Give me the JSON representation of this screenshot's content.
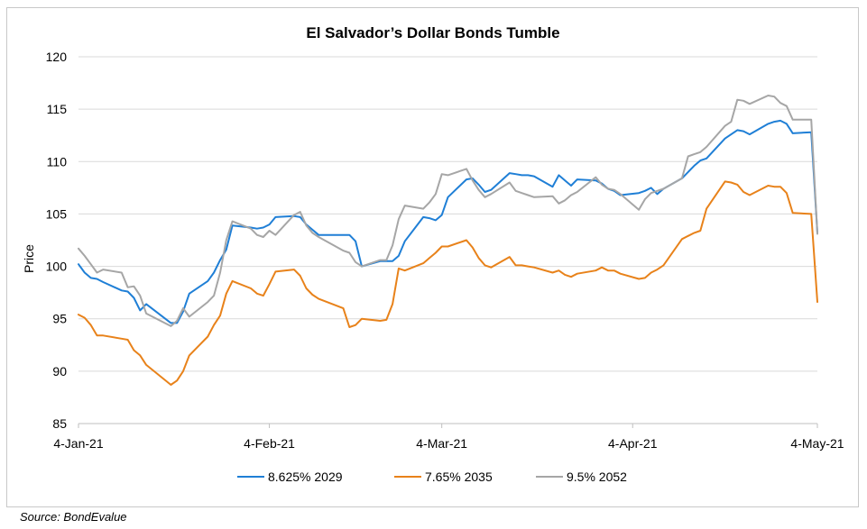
{
  "chart_data": {
    "type": "line",
    "title": "El Salvador’s Dollar Bonds Tumble",
    "xlabel": "",
    "ylabel": "Price",
    "ylim": [
      85,
      120
    ],
    "yticks": [
      85,
      90,
      95,
      100,
      105,
      110,
      115,
      120
    ],
    "xlim": [
      "2021-01-04",
      "2021-05-04"
    ],
    "xtick_labels": [
      {
        "date": "2021-01-04",
        "label": "4-Jan-21"
      },
      {
        "date": "2021-02-04",
        "label": "4-Feb-21"
      },
      {
        "date": "2021-03-04",
        "label": "4-Mar-21"
      },
      {
        "date": "2021-04-04",
        "label": "4-Apr-21"
      },
      {
        "date": "2021-05-04",
        "label": "4-May-21"
      }
    ],
    "grid": "horizontal",
    "legend_position": "bottom",
    "series": [
      {
        "name": "8.625% 2029",
        "color": "#1f7fd6",
        "points": [
          [
            "2021-01-04",
            100.2
          ],
          [
            "2021-01-05",
            99.4
          ],
          [
            "2021-01-06",
            98.9
          ],
          [
            "2021-01-07",
            98.8
          ],
          [
            "2021-01-08",
            98.5
          ],
          [
            "2021-01-11",
            97.7
          ],
          [
            "2021-01-12",
            97.6
          ],
          [
            "2021-01-13",
            97.0
          ],
          [
            "2021-01-14",
            95.8
          ],
          [
            "2021-01-15",
            96.4
          ],
          [
            "2021-01-19",
            94.6
          ],
          [
            "2021-01-20",
            94.6
          ],
          [
            "2021-01-21",
            95.7
          ],
          [
            "2021-01-22",
            97.4
          ],
          [
            "2021-01-25",
            98.6
          ],
          [
            "2021-01-26",
            99.4
          ],
          [
            "2021-01-27",
            100.6
          ],
          [
            "2021-01-28",
            101.6
          ],
          [
            "2021-01-29",
            103.9
          ],
          [
            "2021-02-01",
            103.7
          ],
          [
            "2021-02-02",
            103.6
          ],
          [
            "2021-02-03",
            103.7
          ],
          [
            "2021-02-04",
            104.0
          ],
          [
            "2021-02-05",
            104.7
          ],
          [
            "2021-02-08",
            104.8
          ],
          [
            "2021-02-09",
            104.7
          ],
          [
            "2021-02-10",
            104.0
          ],
          [
            "2021-02-11",
            103.5
          ],
          [
            "2021-02-12",
            103.0
          ],
          [
            "2021-02-16",
            103.0
          ],
          [
            "2021-02-17",
            103.0
          ],
          [
            "2021-02-18",
            102.4
          ],
          [
            "2021-02-19",
            100.0
          ],
          [
            "2021-02-22",
            100.5
          ],
          [
            "2021-02-23",
            100.5
          ],
          [
            "2021-02-24",
            100.5
          ],
          [
            "2021-02-25",
            101.0
          ],
          [
            "2021-02-26",
            102.4
          ],
          [
            "2021-03-01",
            104.7
          ],
          [
            "2021-03-02",
            104.6
          ],
          [
            "2021-03-03",
            104.4
          ],
          [
            "2021-03-04",
            104.9
          ],
          [
            "2021-03-05",
            106.6
          ],
          [
            "2021-03-08",
            108.3
          ],
          [
            "2021-03-09",
            108.4
          ],
          [
            "2021-03-10",
            107.8
          ],
          [
            "2021-03-11",
            107.1
          ],
          [
            "2021-03-12",
            107.3
          ],
          [
            "2021-03-15",
            108.9
          ],
          [
            "2021-03-16",
            108.8
          ],
          [
            "2021-03-17",
            108.7
          ],
          [
            "2021-03-18",
            108.7
          ],
          [
            "2021-03-19",
            108.6
          ],
          [
            "2021-03-22",
            107.6
          ],
          [
            "2021-03-23",
            108.7
          ],
          [
            "2021-03-24",
            108.2
          ],
          [
            "2021-03-25",
            107.7
          ],
          [
            "2021-03-26",
            108.3
          ],
          [
            "2021-03-29",
            108.2
          ],
          [
            "2021-03-30",
            107.9
          ],
          [
            "2021-03-31",
            107.4
          ],
          [
            "2021-04-01",
            107.2
          ],
          [
            "2021-04-02",
            106.8
          ],
          [
            "2021-04-05",
            107.0
          ],
          [
            "2021-04-06",
            107.2
          ],
          [
            "2021-04-07",
            107.5
          ],
          [
            "2021-04-08",
            106.9
          ],
          [
            "2021-04-09",
            107.4
          ],
          [
            "2021-04-12",
            108.4
          ],
          [
            "2021-04-13",
            109.0
          ],
          [
            "2021-04-14",
            109.6
          ],
          [
            "2021-04-15",
            110.1
          ],
          [
            "2021-04-16",
            110.3
          ],
          [
            "2021-04-19",
            112.2
          ],
          [
            "2021-04-20",
            112.6
          ],
          [
            "2021-04-21",
            113.0
          ],
          [
            "2021-04-22",
            112.9
          ],
          [
            "2021-04-23",
            112.6
          ],
          [
            "2021-04-26",
            113.6
          ],
          [
            "2021-04-27",
            113.8
          ],
          [
            "2021-04-28",
            113.9
          ],
          [
            "2021-04-29",
            113.6
          ],
          [
            "2021-04-30",
            112.7
          ],
          [
            "2021-05-03",
            112.8
          ],
          [
            "2021-05-04",
            103.2
          ]
        ]
      },
      {
        "name": "7.65% 2035",
        "color": "#e8821a",
        "points": [
          [
            "2021-01-04",
            95.4
          ],
          [
            "2021-01-05",
            95.1
          ],
          [
            "2021-01-06",
            94.4
          ],
          [
            "2021-01-07",
            93.4
          ],
          [
            "2021-01-08",
            93.4
          ],
          [
            "2021-01-11",
            93.1
          ],
          [
            "2021-01-12",
            93.0
          ],
          [
            "2021-01-13",
            92.0
          ],
          [
            "2021-01-14",
            91.5
          ],
          [
            "2021-01-15",
            90.6
          ],
          [
            "2021-01-19",
            88.7
          ],
          [
            "2021-01-20",
            89.1
          ],
          [
            "2021-01-21",
            90.0
          ],
          [
            "2021-01-22",
            91.5
          ],
          [
            "2021-01-25",
            93.3
          ],
          [
            "2021-01-26",
            94.4
          ],
          [
            "2021-01-27",
            95.3
          ],
          [
            "2021-01-28",
            97.4
          ],
          [
            "2021-01-29",
            98.6
          ],
          [
            "2021-02-01",
            97.9
          ],
          [
            "2021-02-02",
            97.4
          ],
          [
            "2021-02-03",
            97.2
          ],
          [
            "2021-02-04",
            98.3
          ],
          [
            "2021-02-05",
            99.5
          ],
          [
            "2021-02-08",
            99.7
          ],
          [
            "2021-02-09",
            99.1
          ],
          [
            "2021-02-10",
            97.9
          ],
          [
            "2021-02-11",
            97.3
          ],
          [
            "2021-02-12",
            96.9
          ],
          [
            "2021-02-16",
            96.0
          ],
          [
            "2021-02-17",
            94.2
          ],
          [
            "2021-02-18",
            94.4
          ],
          [
            "2021-02-19",
            95.0
          ],
          [
            "2021-02-22",
            94.8
          ],
          [
            "2021-02-23",
            94.9
          ],
          [
            "2021-02-24",
            96.4
          ],
          [
            "2021-02-25",
            99.8
          ],
          [
            "2021-02-26",
            99.6
          ],
          [
            "2021-03-01",
            100.3
          ],
          [
            "2021-03-02",
            100.8
          ],
          [
            "2021-03-03",
            101.3
          ],
          [
            "2021-03-04",
            101.9
          ],
          [
            "2021-03-05",
            101.9
          ],
          [
            "2021-03-08",
            102.5
          ],
          [
            "2021-03-09",
            101.8
          ],
          [
            "2021-03-10",
            100.8
          ],
          [
            "2021-03-11",
            100.1
          ],
          [
            "2021-03-12",
            99.9
          ],
          [
            "2021-03-15",
            100.9
          ],
          [
            "2021-03-16",
            100.1
          ],
          [
            "2021-03-17",
            100.1
          ],
          [
            "2021-03-18",
            100.0
          ],
          [
            "2021-03-19",
            99.9
          ],
          [
            "2021-03-22",
            99.4
          ],
          [
            "2021-03-23",
            99.6
          ],
          [
            "2021-03-24",
            99.2
          ],
          [
            "2021-03-25",
            99.0
          ],
          [
            "2021-03-26",
            99.3
          ],
          [
            "2021-03-29",
            99.6
          ],
          [
            "2021-03-30",
            99.9
          ],
          [
            "2021-03-31",
            99.6
          ],
          [
            "2021-04-01",
            99.6
          ],
          [
            "2021-04-02",
            99.3
          ],
          [
            "2021-04-05",
            98.8
          ],
          [
            "2021-04-06",
            98.9
          ],
          [
            "2021-04-07",
            99.4
          ],
          [
            "2021-04-08",
            99.7
          ],
          [
            "2021-04-09",
            100.1
          ],
          [
            "2021-04-12",
            102.6
          ],
          [
            "2021-04-13",
            102.9
          ],
          [
            "2021-04-14",
            103.2
          ],
          [
            "2021-04-15",
            103.4
          ],
          [
            "2021-04-16",
            105.5
          ],
          [
            "2021-04-19",
            108.1
          ],
          [
            "2021-04-20",
            108.0
          ],
          [
            "2021-04-21",
            107.8
          ],
          [
            "2021-04-22",
            107.1
          ],
          [
            "2021-04-23",
            106.8
          ],
          [
            "2021-04-26",
            107.7
          ],
          [
            "2021-04-27",
            107.6
          ],
          [
            "2021-04-28",
            107.6
          ],
          [
            "2021-04-29",
            107.0
          ],
          [
            "2021-04-30",
            105.1
          ],
          [
            "2021-05-03",
            105.0
          ],
          [
            "2021-05-04",
            96.6
          ]
        ]
      },
      {
        "name": "9.5% 2052",
        "color": "#a6a6a6",
        "points": [
          [
            "2021-01-04",
            101.7
          ],
          [
            "2021-01-05",
            101.0
          ],
          [
            "2021-01-06",
            100.2
          ],
          [
            "2021-01-07",
            99.4
          ],
          [
            "2021-01-08",
            99.7
          ],
          [
            "2021-01-11",
            99.4
          ],
          [
            "2021-01-12",
            98.0
          ],
          [
            "2021-01-13",
            98.1
          ],
          [
            "2021-01-14",
            97.2
          ],
          [
            "2021-01-15",
            95.5
          ],
          [
            "2021-01-19",
            94.3
          ],
          [
            "2021-01-20",
            94.8
          ],
          [
            "2021-01-21",
            96.0
          ],
          [
            "2021-01-22",
            95.2
          ],
          [
            "2021-01-25",
            96.6
          ],
          [
            "2021-01-26",
            97.2
          ],
          [
            "2021-01-27",
            99.4
          ],
          [
            "2021-01-28",
            102.5
          ],
          [
            "2021-01-29",
            104.3
          ],
          [
            "2021-02-01",
            103.6
          ],
          [
            "2021-02-02",
            103.0
          ],
          [
            "2021-02-03",
            102.8
          ],
          [
            "2021-02-04",
            103.4
          ],
          [
            "2021-02-05",
            103.0
          ],
          [
            "2021-02-08",
            104.9
          ],
          [
            "2021-02-09",
            105.2
          ],
          [
            "2021-02-10",
            103.9
          ],
          [
            "2021-02-11",
            103.2
          ],
          [
            "2021-02-12",
            102.8
          ],
          [
            "2021-02-16",
            101.5
          ],
          [
            "2021-02-17",
            101.3
          ],
          [
            "2021-02-18",
            100.4
          ],
          [
            "2021-02-19",
            100.0
          ],
          [
            "2021-02-22",
            100.6
          ],
          [
            "2021-02-23",
            100.6
          ],
          [
            "2021-02-24",
            102.0
          ],
          [
            "2021-02-25",
            104.5
          ],
          [
            "2021-02-26",
            105.8
          ],
          [
            "2021-03-01",
            105.5
          ],
          [
            "2021-03-02",
            106.1
          ],
          [
            "2021-03-03",
            106.9
          ],
          [
            "2021-03-04",
            108.8
          ],
          [
            "2021-03-05",
            108.7
          ],
          [
            "2021-03-08",
            109.3
          ],
          [
            "2021-03-09",
            108.2
          ],
          [
            "2021-03-10",
            107.3
          ],
          [
            "2021-03-11",
            106.6
          ],
          [
            "2021-03-12",
            106.9
          ],
          [
            "2021-03-15",
            108.0
          ],
          [
            "2021-03-16",
            107.2
          ],
          [
            "2021-03-17",
            107.0
          ],
          [
            "2021-03-18",
            106.8
          ],
          [
            "2021-03-19",
            106.6
          ],
          [
            "2021-03-22",
            106.7
          ],
          [
            "2021-03-23",
            106.0
          ],
          [
            "2021-03-24",
            106.3
          ],
          [
            "2021-03-25",
            106.8
          ],
          [
            "2021-03-26",
            107.1
          ],
          [
            "2021-03-29",
            108.5
          ],
          [
            "2021-03-30",
            107.8
          ],
          [
            "2021-03-31",
            107.4
          ],
          [
            "2021-04-01",
            107.3
          ],
          [
            "2021-04-02",
            106.9
          ],
          [
            "2021-04-05",
            105.4
          ],
          [
            "2021-04-06",
            106.4
          ],
          [
            "2021-04-07",
            107.0
          ],
          [
            "2021-04-08",
            107.2
          ],
          [
            "2021-04-09",
            107.4
          ],
          [
            "2021-04-12",
            108.4
          ],
          [
            "2021-04-13",
            110.5
          ],
          [
            "2021-04-14",
            110.7
          ],
          [
            "2021-04-15",
            110.9
          ],
          [
            "2021-04-16",
            111.4
          ],
          [
            "2021-04-19",
            113.4
          ],
          [
            "2021-04-20",
            113.8
          ],
          [
            "2021-04-21",
            115.9
          ],
          [
            "2021-04-22",
            115.8
          ],
          [
            "2021-04-23",
            115.5
          ],
          [
            "2021-04-26",
            116.3
          ],
          [
            "2021-04-27",
            116.2
          ],
          [
            "2021-04-28",
            115.6
          ],
          [
            "2021-04-29",
            115.3
          ],
          [
            "2021-04-30",
            114.0
          ],
          [
            "2021-05-03",
            114.0
          ],
          [
            "2021-05-04",
            103.1
          ]
        ]
      }
    ]
  },
  "source_note": "Source: BondEvalue"
}
